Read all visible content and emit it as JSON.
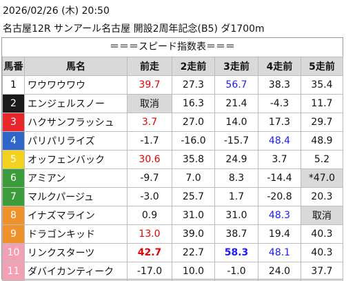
{
  "header": {
    "datetime": "2026/02/26 (木) 20:50",
    "race": "名古屋12R サンアール名古屋 開設2周年記念(B5) ダ1700m"
  },
  "table": {
    "title": "＝＝＝スピード指数表＝＝＝",
    "columns": [
      "馬番",
      "馬名",
      "前走",
      "2走前",
      "3走前",
      "4走前",
      "5走前"
    ],
    "header_bg": "#d9d9d9",
    "red": "#e60000",
    "blue": "#1a1aff",
    "muted_bg": "#d9d9d9",
    "rows": [
      {
        "number": "1",
        "frame": "#ffffff",
        "frame_text": "#000000",
        "name": "ワウワウワウ",
        "scores": [
          {
            "text": "39.7",
            "color": "red"
          },
          "27.3",
          {
            "text": "56.7",
            "color": "blue"
          },
          "38.3",
          "35.4"
        ]
      },
      {
        "number": "2",
        "frame": "#1a1a1a",
        "frame_text": "#ffffff",
        "name": "エンジェルスノー",
        "scores": [
          {
            "text": "取消",
            "bg": "muted"
          },
          "16.3",
          "21.4",
          "-4.3",
          "11.7"
        ]
      },
      {
        "number": "3",
        "frame": "#e8262b",
        "frame_text": "#ffffff",
        "name": "ハクサンフラッシュ",
        "scores": [
          {
            "text": "3.7",
            "color": "red"
          },
          "27.0",
          "14.0",
          "17.3",
          "29.7"
        ]
      },
      {
        "number": "4",
        "frame": "#2f64c8",
        "frame_text": "#ffffff",
        "name": "パリパリライズ",
        "scores": [
          "-1.7",
          "-16.0",
          "-15.7",
          {
            "text": "48.4",
            "color": "blue"
          },
          "48.9"
        ]
      },
      {
        "number": "5",
        "frame": "#f2d21c",
        "frame_text": "#ffffff",
        "name": "オッフェンバック",
        "scores": [
          {
            "text": "30.6",
            "color": "red"
          },
          "35.8",
          "24.9",
          "3.7",
          "5.2"
        ]
      },
      {
        "number": "6",
        "frame": "#3a9c3a",
        "frame_text": "#ffffff",
        "name": "アミアン",
        "scores": [
          "-9.7",
          "7.0",
          "8.3",
          "-14.4",
          {
            "text": "*47.0",
            "bg": "muted"
          }
        ]
      },
      {
        "number": "7",
        "frame": "#3a9c3a",
        "frame_text": "#ffffff",
        "name": "マルクパージュ",
        "scores": [
          "-3.0",
          "25.7",
          "1.7",
          "-20.8",
          "20.3"
        ]
      },
      {
        "number": "8",
        "frame": "#f0922b",
        "frame_text": "#ffffff",
        "name": "イナズマライン",
        "scores": [
          "0.9",
          "31.0",
          "31.0",
          {
            "text": "48.3",
            "color": "blue"
          },
          {
            "text": "取消",
            "bg": "muted"
          }
        ]
      },
      {
        "number": "9",
        "frame": "#f0922b",
        "frame_text": "#ffffff",
        "name": "ドラゴンキッド",
        "scores": [
          {
            "text": "13.0",
            "color": "red"
          },
          "39.0",
          "38.7",
          "19.4",
          "40.3"
        ]
      },
      {
        "number": "10",
        "frame": "#f2a0b4",
        "frame_text": "#ffffff",
        "name": "リンクスターツ",
        "scores": [
          {
            "text": "42.7",
            "color": "red",
            "bold": true
          },
          "22.7",
          {
            "text": "58.3",
            "color": "blue",
            "bold": true
          },
          {
            "text": "48.1",
            "color": "blue"
          },
          "40.3"
        ]
      },
      {
        "number": "11",
        "frame": "#f2a0b4",
        "frame_text": "#ffffff",
        "name": "ダバイカンティーク",
        "scores": [
          "-17.0",
          "10.0",
          "-1.0",
          "24.0",
          "37.7"
        ]
      }
    ]
  }
}
